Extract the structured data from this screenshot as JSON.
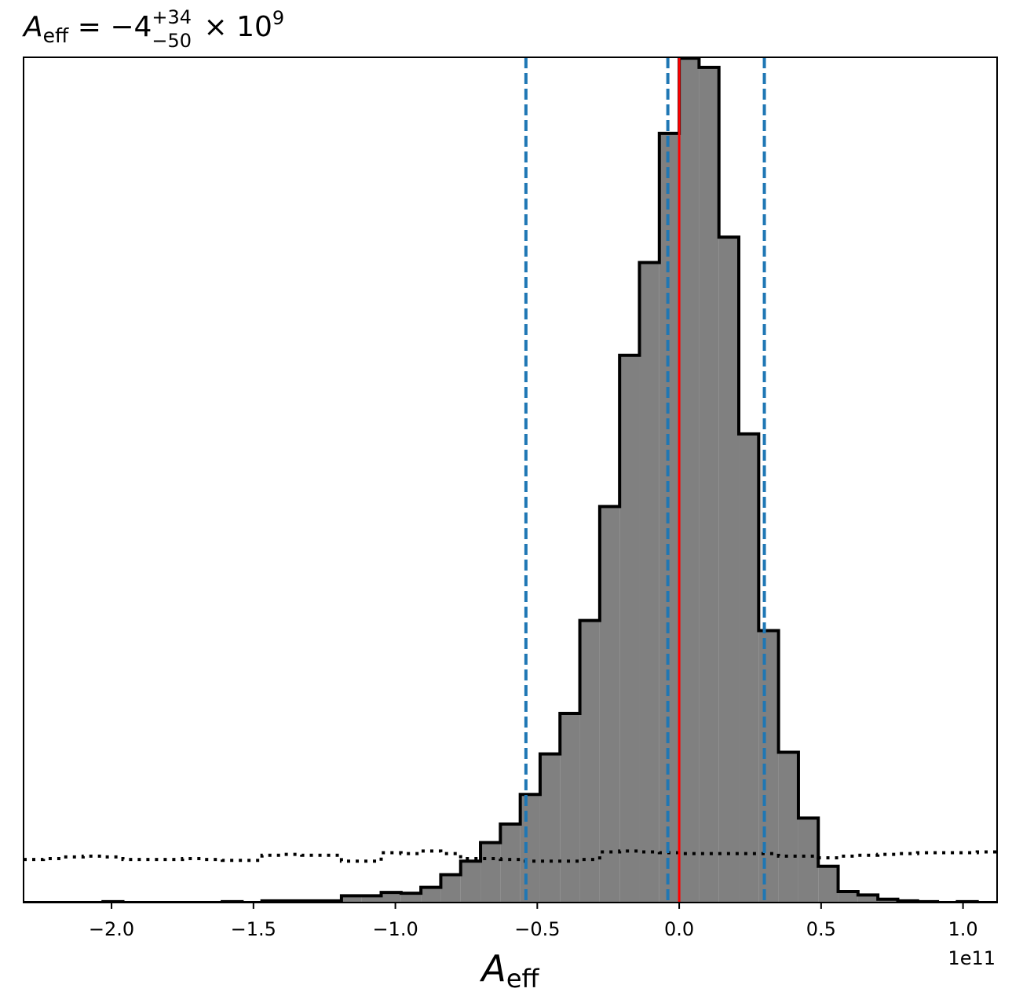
{
  "chart_data": {
    "type": "histogram",
    "title": {
      "symbol": "A",
      "subscript": "eff",
      "equals": " = ",
      "value": "−4",
      "upper": "+34",
      "lower": "−50",
      "multiplier": " × 10",
      "exponent": "9"
    },
    "xlabel": {
      "symbol": "A",
      "subscript": "eff"
    },
    "offset_label": "1e11",
    "xlim": [
      -2.31,
      1.12
    ],
    "ylim": [
      0,
      1.0
    ],
    "y_axis_visible": false,
    "xticks": [
      {
        "value": -2.0,
        "label": "−2.0"
      },
      {
        "value": -1.5,
        "label": "−1.5"
      },
      {
        "value": -1.0,
        "label": "−1.0"
      },
      {
        "value": -0.5,
        "label": "−0.5"
      },
      {
        "value": 0.0,
        "label": "0.0"
      },
      {
        "value": 0.5,
        "label": "0.5"
      },
      {
        "value": 1.0,
        "label": "1.0"
      }
    ],
    "bin_edges": [
      -2.31,
      -2.24,
      -2.17,
      -2.1,
      -2.03,
      -1.96,
      -1.89,
      -1.82,
      -1.75,
      -1.68,
      -1.61,
      -1.54,
      -1.47,
      -1.4,
      -1.33,
      -1.26,
      -1.19,
      -1.12,
      -1.05,
      -0.98,
      -0.91,
      -0.84,
      -0.77,
      -0.7,
      -0.63,
      -0.56,
      -0.49,
      -0.42,
      -0.35,
      -0.28,
      -0.21,
      -0.14,
      -0.07,
      0.0,
      0.07,
      0.14,
      0.21,
      0.28,
      0.35,
      0.42,
      0.49,
      0.56,
      0.63,
      0.7,
      0.77,
      0.84,
      0.91,
      0.98,
      1.05,
      1.12
    ],
    "posterior_counts": [
      0.0,
      0.0,
      0.0,
      0.0,
      0.001,
      0.0,
      0.0,
      0.0,
      0.0,
      0.0,
      0.001,
      0.0,
      0.002,
      0.002,
      0.002,
      0.002,
      0.008,
      0.008,
      0.012,
      0.011,
      0.018,
      0.033,
      0.049,
      0.071,
      0.093,
      0.128,
      0.176,
      0.224,
      0.334,
      0.469,
      0.648,
      0.758,
      0.911,
      1.0,
      0.989,
      0.788,
      0.555,
      0.322,
      0.178,
      0.1,
      0.043,
      0.013,
      0.009,
      0.004,
      0.002,
      0.001,
      0.0,
      0.001,
      0.0
    ],
    "prior_counts": [
      0.051,
      0.052,
      0.054,
      0.055,
      0.054,
      0.051,
      0.051,
      0.051,
      0.052,
      0.051,
      0.05,
      0.05,
      0.056,
      0.057,
      0.056,
      0.056,
      0.049,
      0.049,
      0.059,
      0.058,
      0.061,
      0.058,
      0.052,
      0.052,
      0.051,
      0.049,
      0.049,
      0.049,
      0.051,
      0.06,
      0.061,
      0.06,
      0.059,
      0.058,
      0.058,
      0.058,
      0.058,
      0.058,
      0.055,
      0.055,
      0.053,
      0.055,
      0.056,
      0.057,
      0.058,
      0.059,
      0.059,
      0.059,
      0.06
    ],
    "credible_interval_lines": [
      -0.54,
      -0.04,
      0.3
    ],
    "truth_line": 0.0,
    "colors": {
      "hist_fill": "#808080",
      "hist_edge": "#000000",
      "interval_lines": "#1f77b4",
      "truth_line": "#ff0000",
      "prior_line": "#000000"
    }
  }
}
